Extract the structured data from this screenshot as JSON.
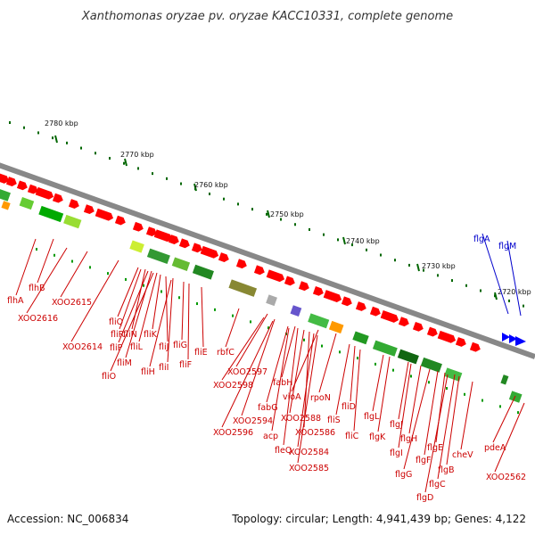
{
  "title": "Xanthomonas oryzae pv. oryzae KACC10331, complete genome",
  "footer": {
    "accession": "Accession: NC_006834",
    "summary": "Topology: circular; Length: 4,941,439 bp; Genes: 4,122"
  },
  "scale_labels": [
    "2780 kbp",
    "2770 kbp",
    "2760 kbp",
    "2750 kbp",
    "2740 kbp",
    "2730 kbp",
    "2720 kbp"
  ],
  "colors": {
    "gene_red": "#ff0000",
    "highlight_blue": "#0000ff",
    "backbone": "#888888",
    "ticks": "#007700"
  },
  "gene_labels": [
    {
      "text": "flhA",
      "color": "#cc0000"
    },
    {
      "text": "flhB",
      "color": "#cc0000"
    },
    {
      "text": "XOO2616",
      "color": "#cc0000"
    },
    {
      "text": "XOO2615",
      "color": "#cc0000"
    },
    {
      "text": "XOO2614",
      "color": "#cc0000"
    },
    {
      "text": "fliQ",
      "color": "#cc0000"
    },
    {
      "text": "fliR",
      "color": "#cc0000"
    },
    {
      "text": "fliN",
      "color": "#cc0000"
    },
    {
      "text": "fliP",
      "color": "#cc0000"
    },
    {
      "text": "fliM",
      "color": "#cc0000"
    },
    {
      "text": "fliO",
      "color": "#cc0000"
    },
    {
      "text": "fliL",
      "color": "#cc0000"
    },
    {
      "text": "fliK",
      "color": "#cc0000"
    },
    {
      "text": "fliJ",
      "color": "#cc0000"
    },
    {
      "text": "fliI",
      "color": "#cc0000"
    },
    {
      "text": "fliH",
      "color": "#cc0000"
    },
    {
      "text": "fliG",
      "color": "#cc0000"
    },
    {
      "text": "fliF",
      "color": "#cc0000"
    },
    {
      "text": "fliE",
      "color": "#cc0000"
    },
    {
      "text": "rbfC",
      "color": "#cc0000"
    },
    {
      "text": "XOO2597",
      "color": "#cc0000"
    },
    {
      "text": "XOO2598",
      "color": "#cc0000"
    },
    {
      "text": "fabH",
      "color": "#cc0000"
    },
    {
      "text": "fabG",
      "color": "#cc0000"
    },
    {
      "text": "vioA",
      "color": "#cc0000"
    },
    {
      "text": "rpoN",
      "color": "#cc0000"
    },
    {
      "text": "XOO2594",
      "color": "#cc0000"
    },
    {
      "text": "XOO2588",
      "color": "#cc0000"
    },
    {
      "text": "XOO2596",
      "color": "#cc0000"
    },
    {
      "text": "acp",
      "color": "#cc0000"
    },
    {
      "text": "fliS",
      "color": "#cc0000"
    },
    {
      "text": "fliD",
      "color": "#cc0000"
    },
    {
      "text": "XOO2586",
      "color": "#cc0000"
    },
    {
      "text": "fleQ",
      "color": "#cc0000"
    },
    {
      "text": "XOO2584",
      "color": "#cc0000"
    },
    {
      "text": "XOO2585",
      "color": "#cc0000"
    },
    {
      "text": "fliC",
      "color": "#cc0000"
    },
    {
      "text": "flgL",
      "color": "#cc0000"
    },
    {
      "text": "flgK",
      "color": "#cc0000"
    },
    {
      "text": "flgJ",
      "color": "#cc0000"
    },
    {
      "text": "flgH",
      "color": "#cc0000"
    },
    {
      "text": "flgI",
      "color": "#cc0000"
    },
    {
      "text": "flgE",
      "color": "#cc0000"
    },
    {
      "text": "flgF",
      "color": "#cc0000"
    },
    {
      "text": "flgG",
      "color": "#cc0000"
    },
    {
      "text": "flgB",
      "color": "#cc0000"
    },
    {
      "text": "flgC",
      "color": "#cc0000"
    },
    {
      "text": "flgD",
      "color": "#cc0000"
    },
    {
      "text": "cheV",
      "color": "#cc0000"
    },
    {
      "text": "pdeA",
      "color": "#cc0000"
    },
    {
      "text": "XOO2562",
      "color": "#cc0000"
    },
    {
      "text": "flgA",
      "color": "#0000cc"
    },
    {
      "text": "flgM",
      "color": "#0000cc"
    }
  ]
}
